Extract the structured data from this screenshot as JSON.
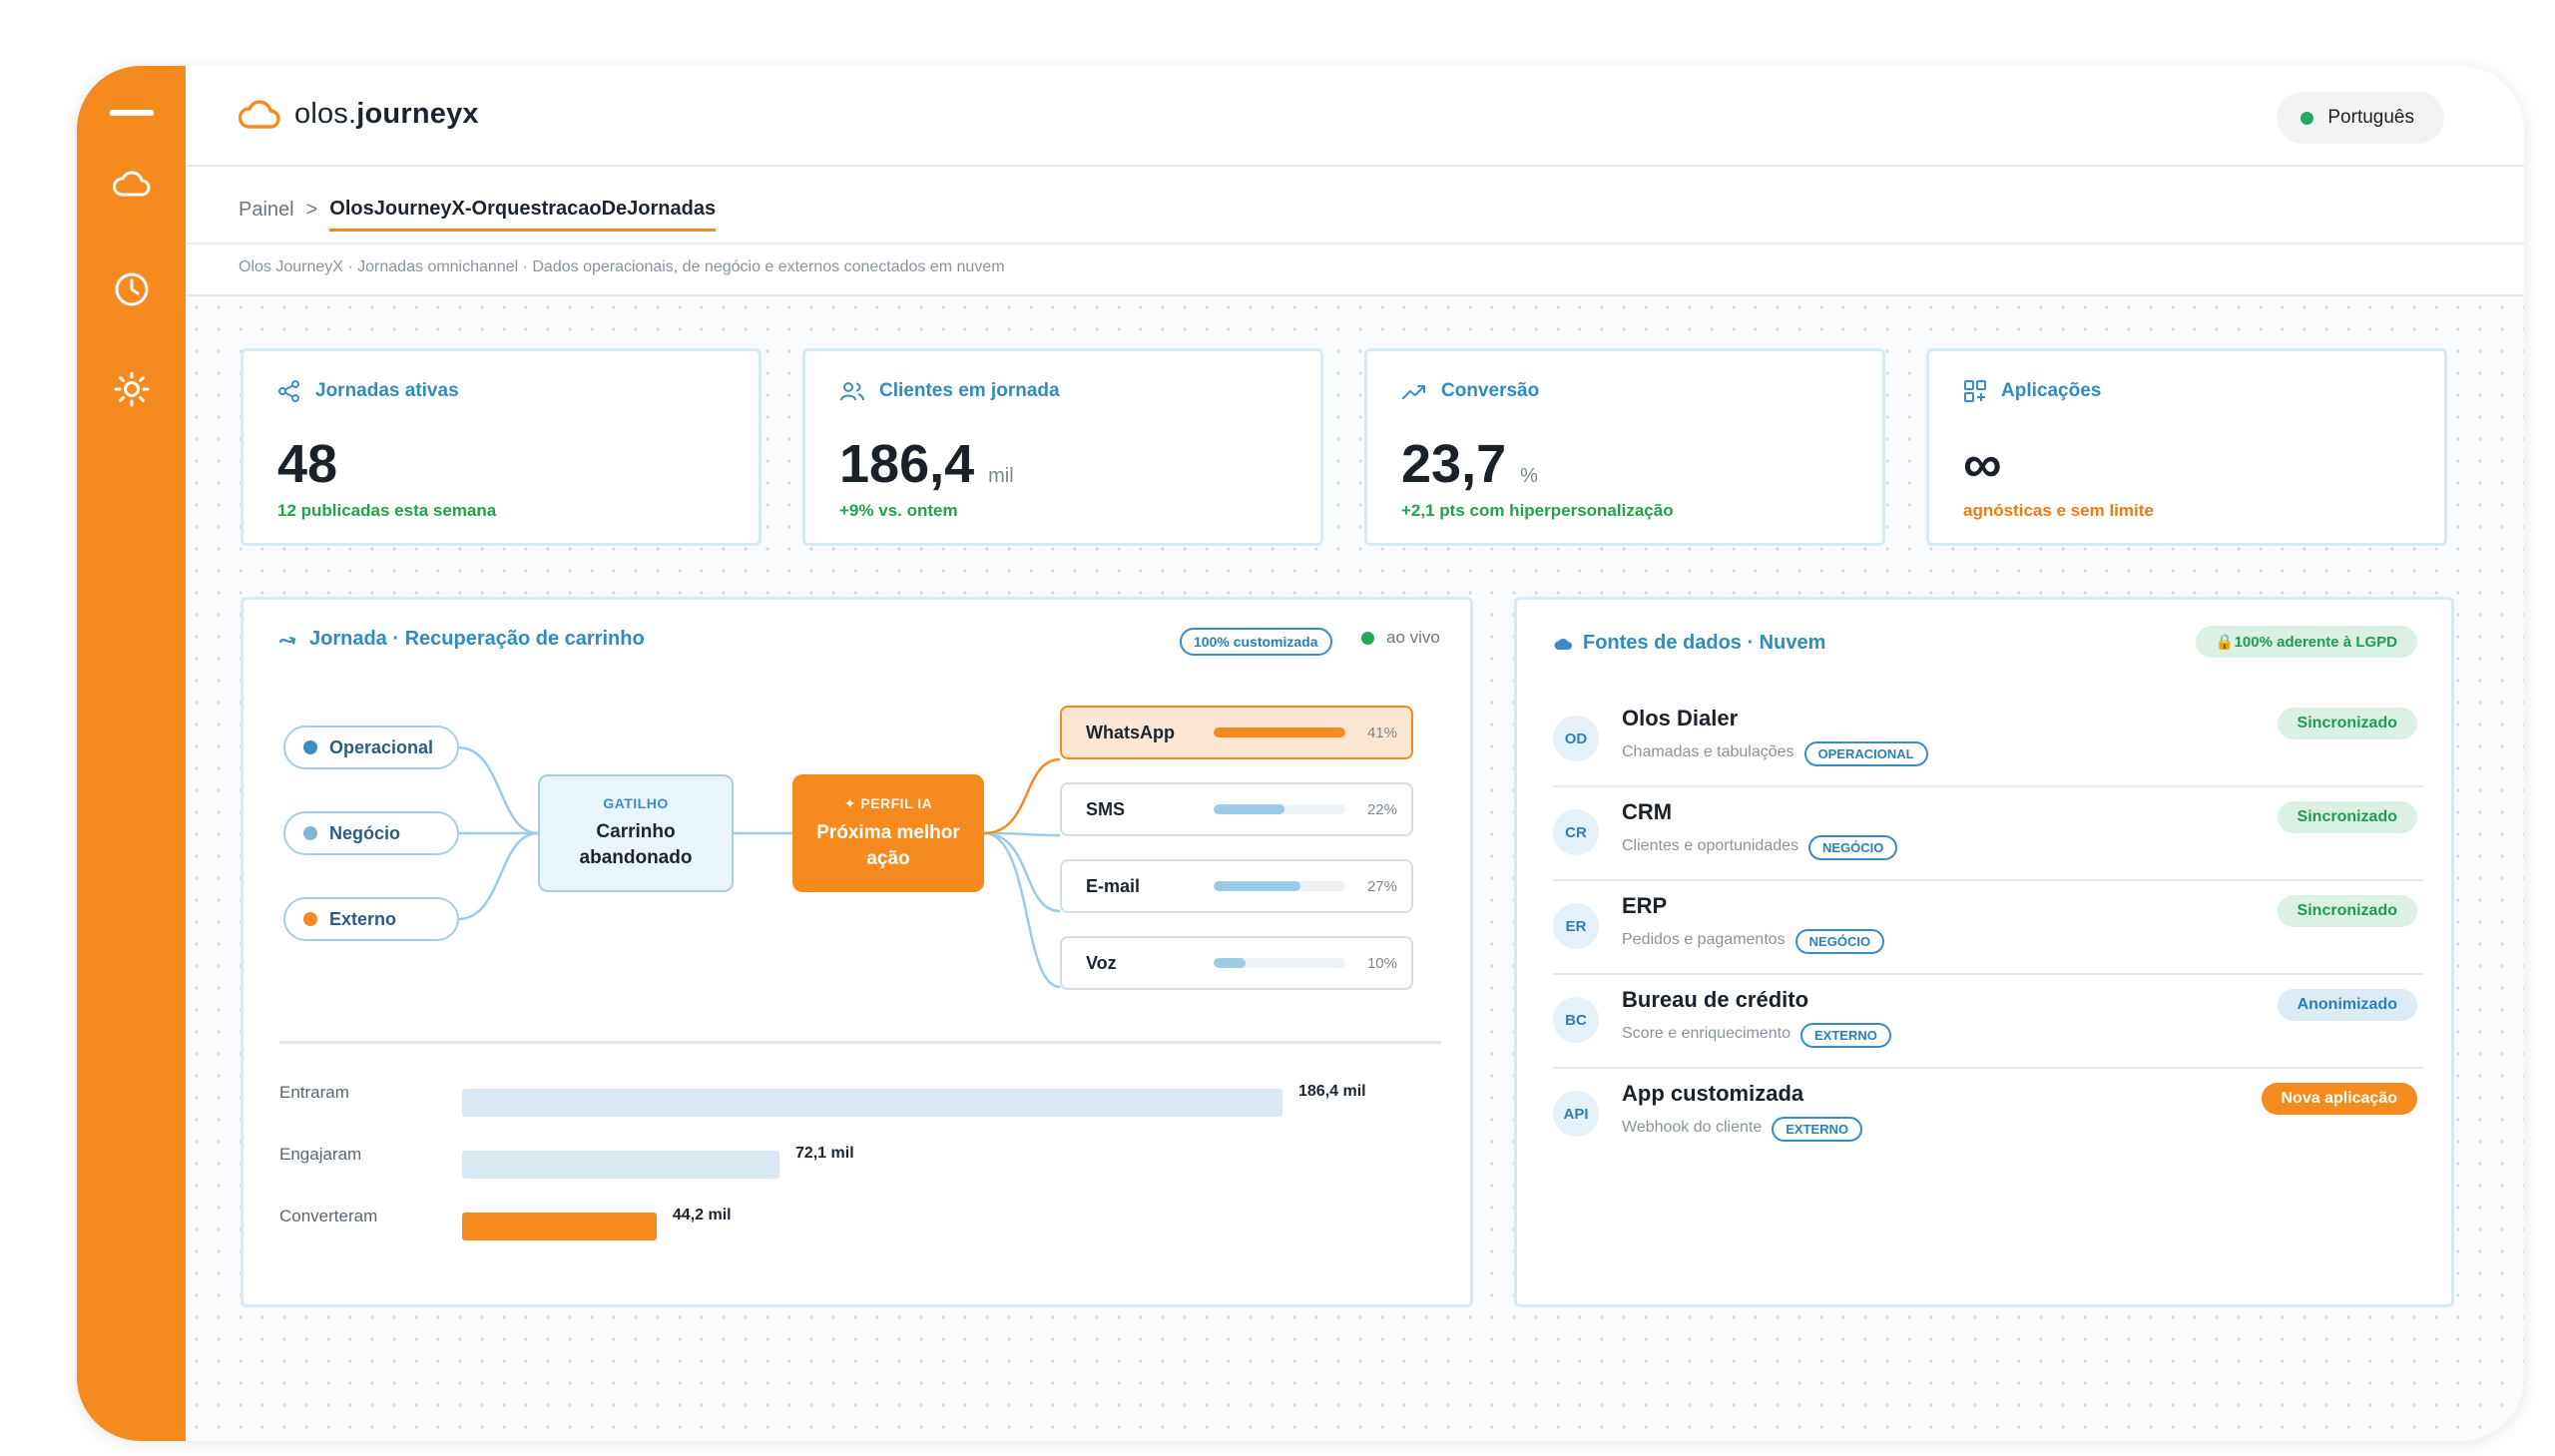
{
  "app": {
    "logo_plain": "olos.",
    "logo_bold": "journeyx",
    "language": "Português",
    "accent": "#f58a1f",
    "primary_blue": "#2f8cc0",
    "success_green": "#22a24e"
  },
  "sidebar": {
    "items": [
      {
        "icon": "menu-icon"
      },
      {
        "icon": "cloud-icon"
      },
      {
        "icon": "clock-icon"
      },
      {
        "icon": "sun-icon"
      }
    ]
  },
  "breadcrumb": {
    "home": "Painel",
    "separator": ">",
    "current": "OlosJourneyX-OrquestracaoDeJornadas"
  },
  "subtitle": "Olos JourneyX · Jornadas omnichannel · Dados operacionais, de negócio e externos conectados em nuvem",
  "kpis": [
    {
      "title": "Jornadas ativas",
      "icon": "share-icon",
      "value": "48",
      "unit": "",
      "note": "12 publicadas esta semana",
      "note_color": "green"
    },
    {
      "title": "Clientes em jornada",
      "icon": "users-icon",
      "value": "186,4",
      "unit": "mil",
      "note": "+9% vs. ontem",
      "note_color": "green"
    },
    {
      "title": "Conversão",
      "icon": "trend-up-icon",
      "value": "23,7",
      "unit": "%",
      "note": "+2,1 pts com hiperpersonalização",
      "note_color": "green"
    },
    {
      "title": "Aplicações",
      "icon": "apps-icon",
      "value": "∞",
      "unit": "",
      "note": "agnósticas e sem limite",
      "note_color": "orange"
    }
  ],
  "journey": {
    "title": "Jornada · Recuperação de carrinho",
    "badge": "100% customizada",
    "live": "ao vivo",
    "sources": [
      {
        "label": "Operacional",
        "color": "#3a8dc4"
      },
      {
        "label": "Negócio",
        "color": "#7fb6d6"
      },
      {
        "label": "Externo",
        "color": "#f58a1f"
      }
    ],
    "trigger": {
      "caption": "GATILHO",
      "label_line1": "Carrinho",
      "label_line2": "abandonado"
    },
    "ai": {
      "caption": "✦ PERFIL IA",
      "label_line1": "Próxima melhor",
      "label_line2": "ação"
    },
    "channels": [
      {
        "name": "WhatsApp",
        "share": 41,
        "pct": "41%",
        "highlight": true
      },
      {
        "name": "SMS",
        "share": 22,
        "pct": "22%",
        "highlight": false
      },
      {
        "name": "E-mail",
        "share": 27,
        "pct": "27%",
        "highlight": false
      },
      {
        "name": "Voz",
        "share": 10,
        "pct": "10%",
        "highlight": false
      }
    ],
    "funnel": [
      {
        "label": "Entraram",
        "value": 186.4,
        "value_label": "186,4 mil",
        "color": "blue"
      },
      {
        "label": "Engajaram",
        "value": 72.1,
        "value_label": "72,1 mil",
        "color": "blue"
      },
      {
        "label": "Converteram",
        "value": 44.2,
        "value_label": "44,2 mil",
        "color": "orange"
      }
    ]
  },
  "data_sources": {
    "title": "Fontes de dados · Nuvem",
    "badge": "🔒100% aderente à LGPD",
    "items": [
      {
        "initials": "OD",
        "name": "Olos Dialer",
        "desc": "Chamadas e tabulações",
        "tag": "OPERACIONAL",
        "status": "Sincronizado",
        "status_color": "green"
      },
      {
        "initials": "CR",
        "name": "CRM",
        "desc": "Clientes e oportunidades",
        "tag": "NEGÓCIO",
        "status": "Sincronizado",
        "status_color": "green"
      },
      {
        "initials": "ER",
        "name": "ERP",
        "desc": "Pedidos e pagamentos",
        "tag": "NEGÓCIO",
        "status": "Sincronizado",
        "status_color": "green"
      },
      {
        "initials": "BC",
        "name": "Bureau de crédito",
        "desc": "Score e enriquecimento",
        "tag": "EXTERNO",
        "status": "Anonimizado",
        "status_color": "blue"
      },
      {
        "initials": "API",
        "name": "App customizada",
        "desc": "Webhook do cliente",
        "tag": "EXTERNO",
        "status": "Nova aplicação",
        "status_color": "orange"
      }
    ]
  }
}
